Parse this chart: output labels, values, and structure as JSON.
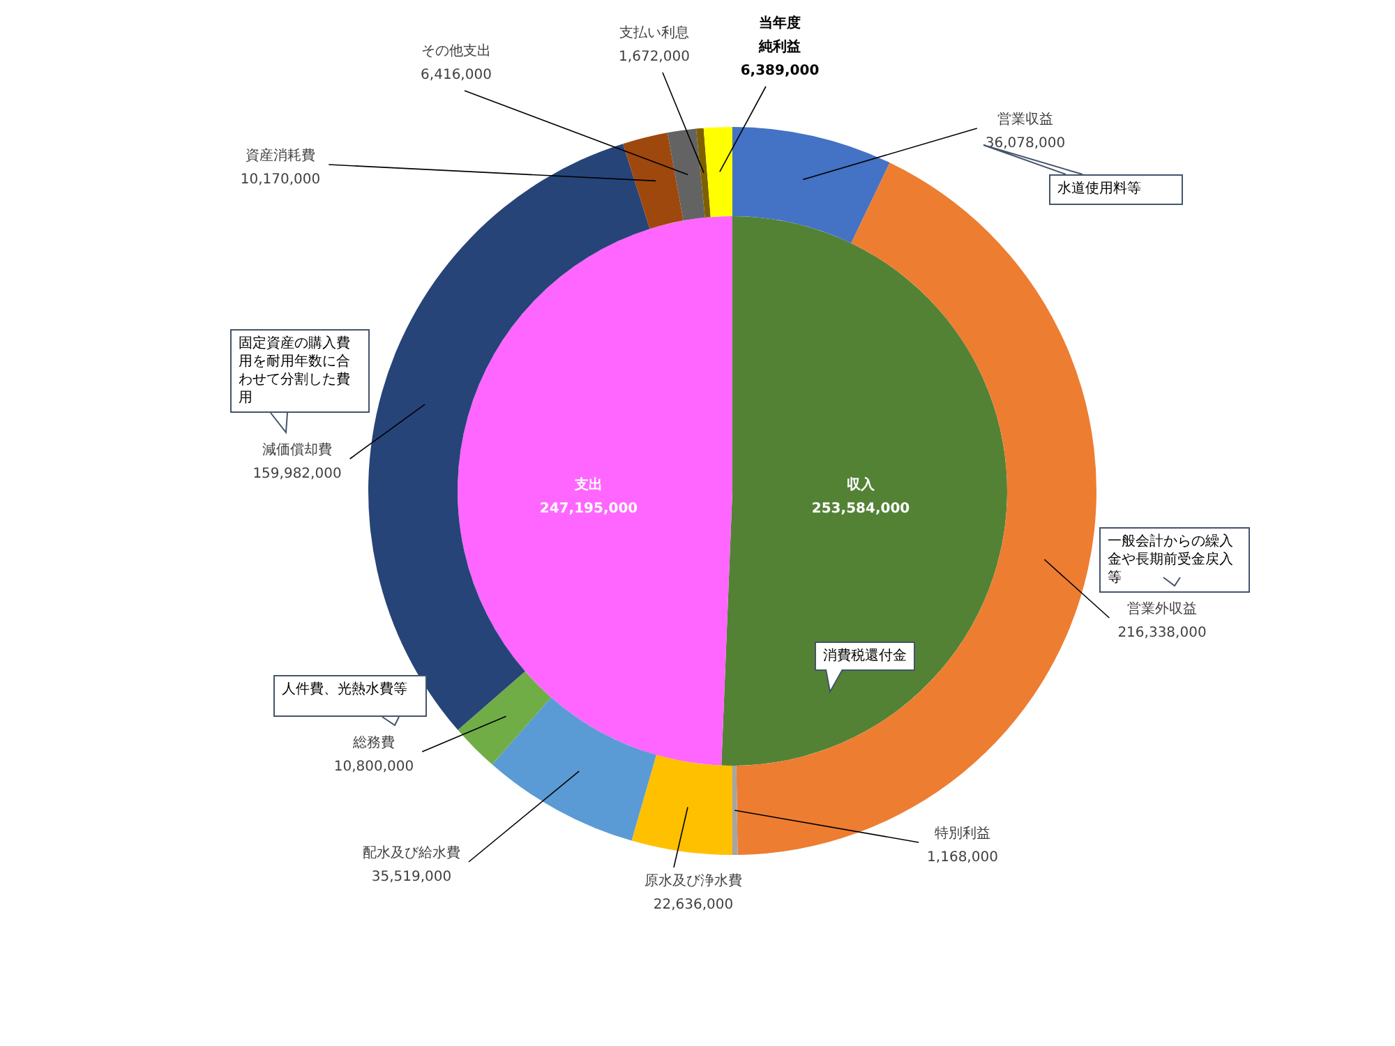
{
  "chart_data": [
    {
      "type": "donut",
      "categories": [
        "営業収益",
        "営業外収益",
        "特別利益",
        "原水及び浄水費",
        "配水及び給水費",
        "総務費",
        "減価償却費",
        "資産消耗費",
        "その他支出",
        "支払い利息",
        "当年度純利益"
      ],
      "values": [
        36078000,
        216338000,
        1168000,
        22636000,
        35519000,
        10800000,
        159982000,
        10170000,
        6416000,
        1672000,
        6389000
      ],
      "value_labels": [
        "36,078,000",
        "216,338,000",
        "1,168,000",
        "22,636,000",
        "35,519,000",
        "10,800,000",
        "159,982,000",
        "10,170,000",
        "6,416,000",
        "1,672,000",
        "6,389,000"
      ],
      "colors": [
        "#4472c4",
        "#ed7d31",
        "#a5a5a5",
        "#ffc000",
        "#5b9bd5",
        "#70ad47",
        "#264478",
        "#9e480e",
        "#636363",
        "#7f6000",
        "#ffff00"
      ],
      "annotations": [
        "水道使用料等",
        "一般会計からの繰入金や長期前受金戻入等",
        "消費税還付金",
        "固定資産の購入費用を耐用年数に合わせて分割した費用",
        "人件費、光熱水費等"
      ]
    },
    {
      "type": "pie",
      "categories": [
        "収入",
        "支出"
      ],
      "values": [
        253584000,
        247195000
      ],
      "value_labels": [
        "253,584,000",
        "247,195,000"
      ],
      "colors": [
        "#548235",
        "#ff66ff"
      ]
    }
  ]
}
